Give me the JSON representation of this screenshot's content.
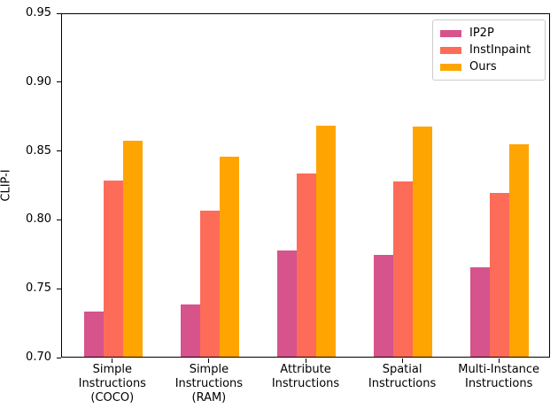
{
  "chart_data": {
    "type": "bar",
    "title": "",
    "ylabel": "CLIP-I",
    "xlabel": "",
    "ylim": [
      0.7,
      0.95
    ],
    "yticks": [
      0.7,
      0.75,
      0.8,
      0.85,
      0.9,
      0.95
    ],
    "grid": false,
    "legend_position": "upper right",
    "categories": [
      [
        "Simple",
        "Instructions",
        "(COCO)"
      ],
      [
        "Simple",
        "Instructions",
        "(RAM)"
      ],
      [
        "Attribute",
        "Instructions"
      ],
      [
        "Spatial",
        "Instructions"
      ],
      [
        "Multi-Instance",
        "Instructions"
      ]
    ],
    "series": [
      {
        "name": "IP2P",
        "color": "#d6538b",
        "values": [
          0.733,
          0.738,
          0.777,
          0.774,
          0.765
        ]
      },
      {
        "name": "InstInpaint",
        "color": "#fd6c58",
        "values": [
          0.828,
          0.806,
          0.833,
          0.827,
          0.819
        ]
      },
      {
        "name": "Ours",
        "color": "#ffa502",
        "values": [
          0.857,
          0.845,
          0.868,
          0.867,
          0.854
        ]
      }
    ]
  }
}
